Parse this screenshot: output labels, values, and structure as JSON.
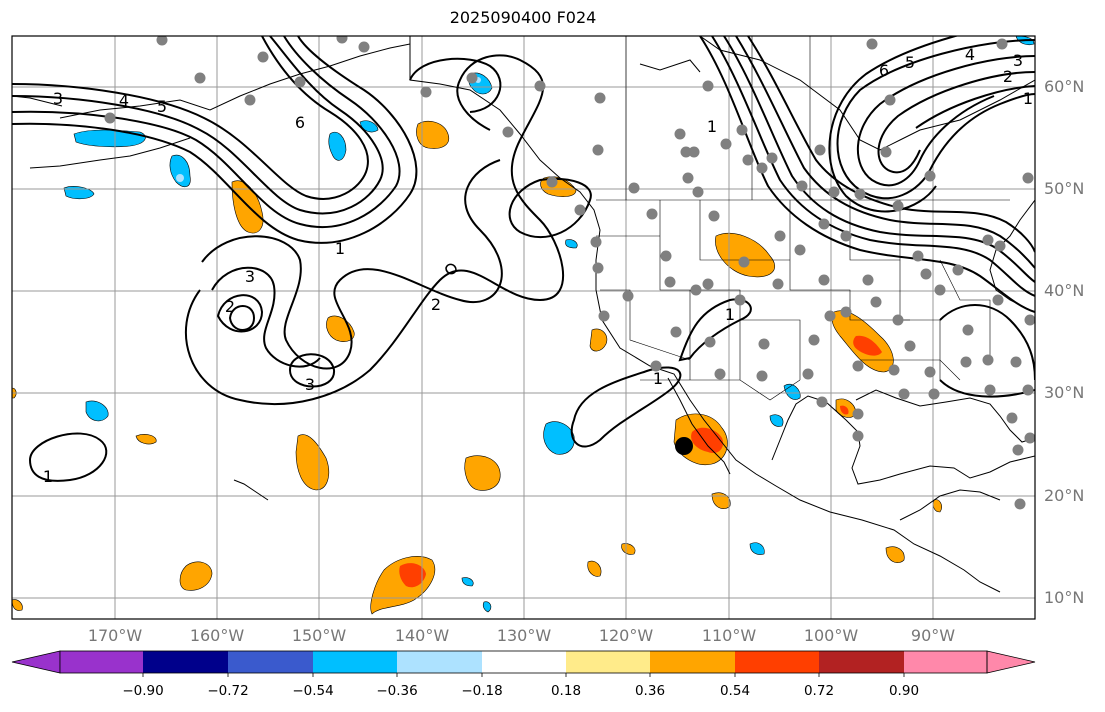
{
  "title": "2025090400 F024",
  "lat_labels": [
    "60°N",
    "50°N",
    "40°N",
    "30°N",
    "20°N",
    "10°N"
  ],
  "lon_labels": [
    "170°W",
    "160°W",
    "150°W",
    "140°W",
    "130°W",
    "120°W",
    "110°W",
    "100°W",
    "90°W"
  ],
  "contour_labels": [
    "3",
    "4",
    "5",
    "6",
    "1",
    "2",
    "3",
    "3",
    "2",
    "1",
    "1",
    "1",
    "1",
    "4",
    "3",
    "2",
    "1",
    "6",
    "5"
  ],
  "colorbar": {
    "ticks": [
      "−0.90",
      "−0.72",
      "−0.54",
      "−0.36",
      "−0.18",
      "0.18",
      "0.36",
      "0.54",
      "0.72",
      "0.90"
    ],
    "colors": [
      "#9932CC",
      "#00008B",
      "#3A5ACD",
      "#00BFFF",
      "#ADE2FF",
      "#FFFFFF",
      "#FFEB8A",
      "#FFA500",
      "#FF3F00",
      "#B22222",
      "#FF88AA"
    ]
  },
  "colors": {
    "land_line": "#000000",
    "grid": "#999999",
    "station": "#808080",
    "label": "#777777"
  }
}
